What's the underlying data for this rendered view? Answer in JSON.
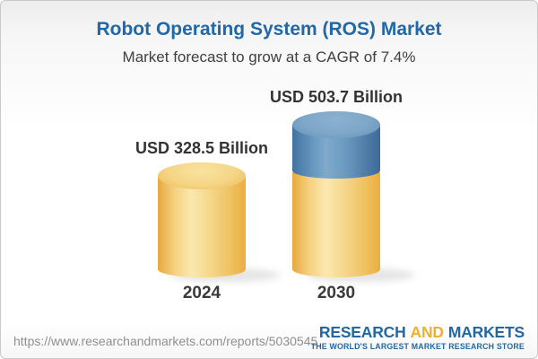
{
  "header": {
    "title": "Robot Operating System (ROS) Market",
    "subtitle": "Market forecast to grow at a CAGR of 7.4%"
  },
  "chart_data": {
    "type": "bar",
    "style": "3d-cylinder",
    "categories": [
      "2024",
      "2030"
    ],
    "values": [
      328.5,
      503.7
    ],
    "value_labels": [
      "USD 328.5 Billion",
      "USD 503.7 Billion"
    ],
    "unit": "USD Billion",
    "cagr": "7.4%",
    "title": "Robot Operating System (ROS) Market",
    "subtitle": "Market forecast to grow at a CAGR of 7.4%",
    "legend": "none",
    "segments": {
      "2024": [
        {
          "value": 328.5,
          "color": "#F3CD74"
        }
      ],
      "2030": [
        {
          "value": 328.5,
          "color": "#F3CD74"
        },
        {
          "value": 175.2,
          "color": "#6395BE"
        }
      ]
    },
    "colors": {
      "bar_yellow": "#F3CD74",
      "bar_blue": "#6395BE",
      "title_blue": "#2268A8",
      "label_dark": "#333333"
    }
  },
  "footer": {
    "url": "https://www.researchandmarkets.com/reports/5030545",
    "logo": {
      "word1": "RESEARCH",
      "word2": "AND",
      "word3": "MARKETS",
      "tagline": "THE WORLD'S LARGEST MARKET RESEARCH STORE",
      "blue": "#2368A4",
      "gold": "#F0AF2D"
    }
  }
}
